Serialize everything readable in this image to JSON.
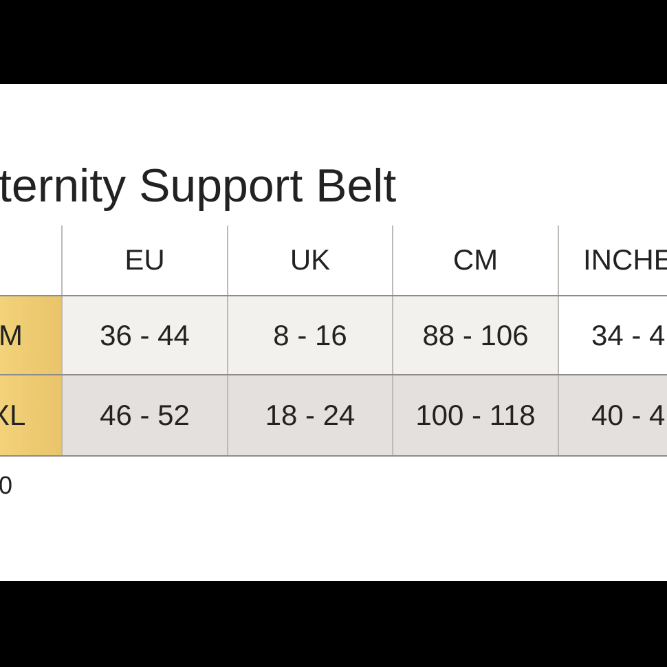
{
  "header": {
    "title": "ternity Support Belt"
  },
  "table": {
    "columns": [
      "EU",
      "UK",
      "CM",
      "INCHE"
    ],
    "rows": [
      [
        "M",
        "36 - 44",
        "8 - 16",
        "88 - 106",
        "34 - 4"
      ],
      [
        "XL",
        "46 - 52",
        "18 - 24",
        "100 - 118",
        "40 - 4"
      ]
    ]
  },
  "footnote": "0"
}
